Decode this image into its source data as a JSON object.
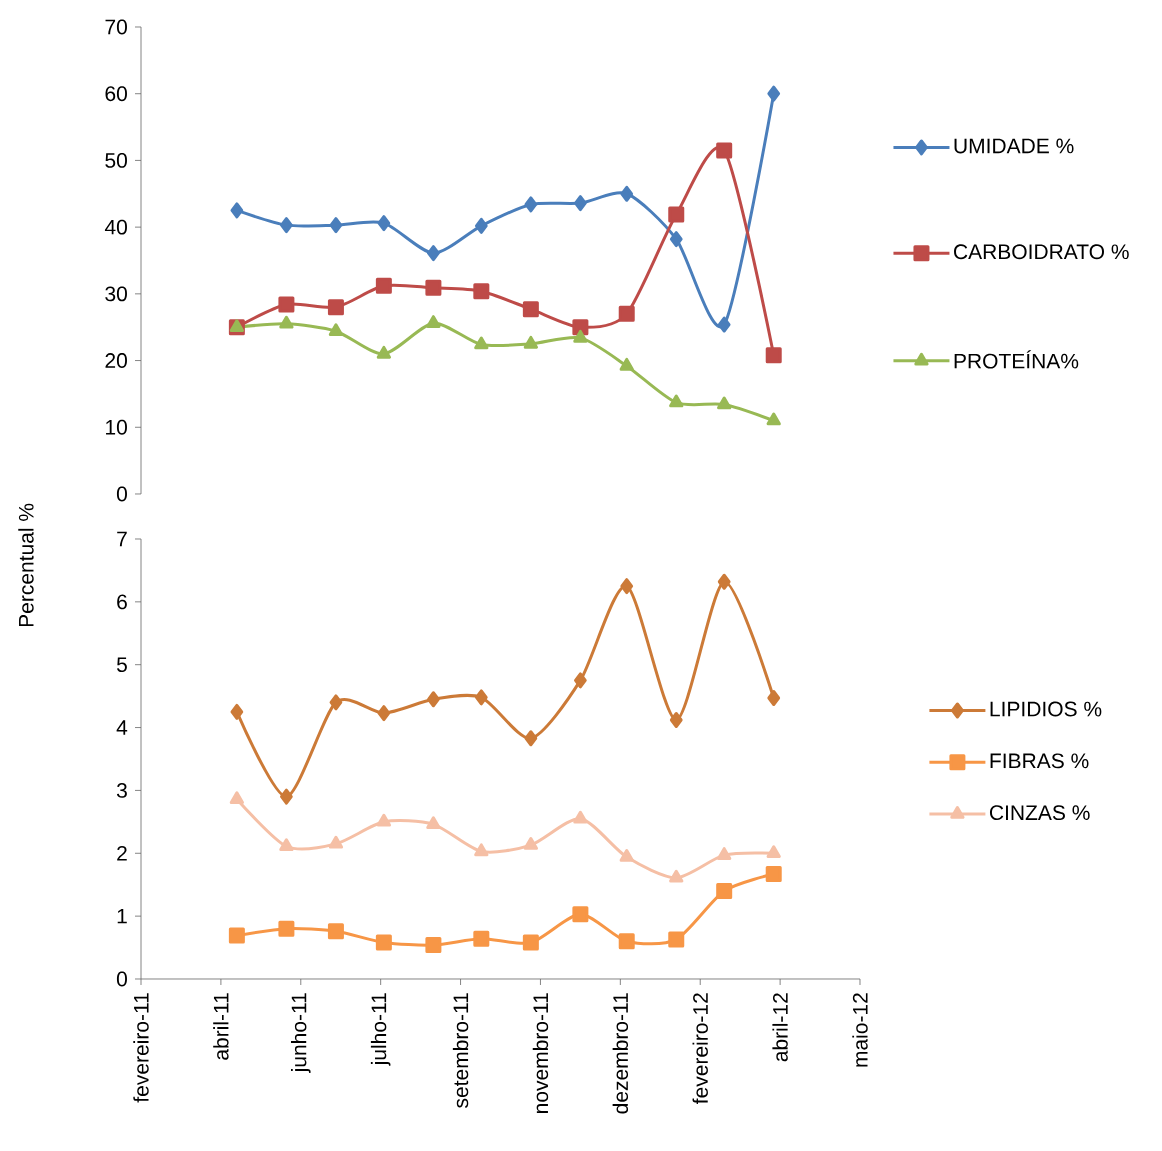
{
  "chart_data": [
    {
      "type": "line",
      "x": [
        "2011-04-28",
        "2011-05-29",
        "2011-06-29",
        "2011-07-29",
        "2011-08-29",
        "2011-09-28",
        "2011-10-29",
        "2011-11-29",
        "2011-12-28",
        "2012-01-28",
        "2012-02-27",
        "2012-03-29"
      ],
      "xlim": [
        "2011-02-27",
        "2012-05-22"
      ],
      "ylim": [
        0,
        70
      ],
      "yticks": [
        0,
        10,
        20,
        30,
        40,
        50,
        60,
        70
      ],
      "tick_labels": "y",
      "legend": "right",
      "line_style": "solid",
      "series": [
        {
          "name": "UMIDADE %",
          "color": "#4a7ebb",
          "marker": "diamond",
          "values": [
            42.5,
            40.3,
            40.3,
            40.6,
            36.1,
            40.2,
            43.4,
            43.6,
            45.0,
            38.2,
            25.4,
            60.0
          ]
        },
        {
          "name": "CARBOIDRATO %",
          "color": "#be4b48",
          "marker": "square",
          "values": [
            25.0,
            28.4,
            28.0,
            31.2,
            30.9,
            30.4,
            27.7,
            25.0,
            27.0,
            41.9,
            51.5,
            20.8
          ]
        },
        {
          "name": "PROTEÍNA%",
          "color": "#98b954",
          "marker": "triangle",
          "values": [
            25.0,
            25.5,
            24.4,
            21.0,
            25.6,
            22.4,
            22.5,
            23.4,
            19.2,
            13.7,
            13.4,
            11.0
          ]
        }
      ]
    },
    {
      "type": "line",
      "x": [
        "2011-04-28",
        "2011-05-29",
        "2011-06-29",
        "2011-07-29",
        "2011-08-29",
        "2011-09-28",
        "2011-10-29",
        "2011-11-29",
        "2011-12-28",
        "2012-01-28",
        "2012-02-27",
        "2012-03-29"
      ],
      "ylabel": "Percentual %",
      "xlim": [
        "2011-02-27",
        "2012-05-22"
      ],
      "xticks": [
        {
          "value": "2011-02-27",
          "label": "fevereiro-11"
        },
        {
          "value": "2011-04-18",
          "label": "abril-11"
        },
        {
          "value": "2011-06-07",
          "label": "junho-11"
        },
        {
          "value": "2011-07-27",
          "label": "julho-11"
        },
        {
          "value": "2011-09-15",
          "label": "setembro-11"
        },
        {
          "value": "2011-11-04",
          "label": "novembro-11"
        },
        {
          "value": "2011-12-24",
          "label": "dezembro-11"
        },
        {
          "value": "2012-02-12",
          "label": "fevereiro-12"
        },
        {
          "value": "2012-04-02",
          "label": "abril-12"
        },
        {
          "value": "2012-05-22",
          "label": "maio-12"
        }
      ],
      "ylim": [
        0,
        7
      ],
      "yticks": [
        0,
        1,
        2,
        3,
        4,
        5,
        6,
        7
      ],
      "legend": "right",
      "line_style": "solid",
      "series": [
        {
          "name": "LIPIDIOS %",
          "color": "#cc7a37",
          "marker": "diamond",
          "values": [
            4.25,
            2.9,
            4.4,
            4.23,
            4.45,
            4.48,
            3.83,
            4.75,
            6.25,
            4.12,
            6.32,
            4.47
          ]
        },
        {
          "name": "FIBRAS %",
          "color": "#f79646",
          "marker": "square",
          "values": [
            0.69,
            0.8,
            0.76,
            0.58,
            0.54,
            0.64,
            0.58,
            1.03,
            0.6,
            0.63,
            1.4,
            1.67
          ]
        },
        {
          "name": "CINZAS %",
          "color": "#f5bfa5",
          "marker": "triangle",
          "values": [
            2.86,
            2.11,
            2.15,
            2.5,
            2.46,
            2.03,
            2.13,
            2.55,
            1.94,
            1.61,
            1.97,
            2.0
          ]
        }
      ]
    }
  ]
}
